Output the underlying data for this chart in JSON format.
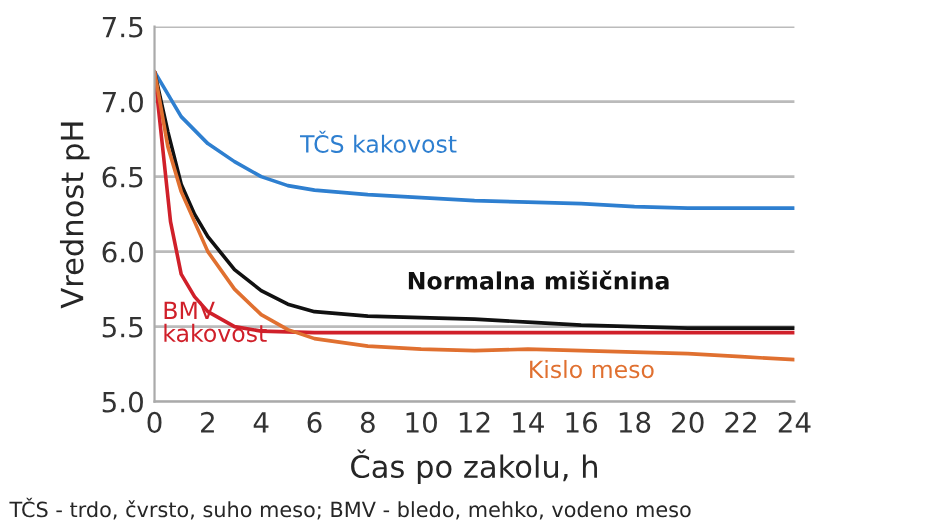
{
  "chart_data": {
    "type": "line",
    "xlabel": "Čas po zakolu, h",
    "ylabel": "Vrednost pH",
    "xlim": [
      0,
      24
    ],
    "xticks": [
      0,
      2,
      4,
      6,
      8,
      10,
      12,
      14,
      16,
      18,
      20,
      22,
      24
    ],
    "ylim": [
      5.0,
      7.5
    ],
    "yticks": [
      {
        "value": 5.0,
        "label": "5.0"
      },
      {
        "value": 5.5,
        "label": "5.5"
      },
      {
        "value": 6.0,
        "label": "6.0"
      },
      {
        "value": 6.5,
        "label": "6.5"
      },
      {
        "value": 7.0,
        "label": "7.0"
      },
      {
        "value": 7.5,
        "label": "7.5"
      }
    ],
    "grid": "y",
    "legend": false,
    "series": [
      {
        "name": "TČS kakovost",
        "color": "#2e7fd0",
        "x": [
          0,
          1,
          2,
          3,
          4,
          5,
          6,
          8,
          10,
          12,
          14,
          16,
          18,
          20,
          24
        ],
        "values": [
          7.2,
          6.9,
          6.72,
          6.6,
          6.5,
          6.44,
          6.41,
          6.38,
          6.36,
          6.34,
          6.33,
          6.32,
          6.3,
          6.29,
          6.29
        ]
      },
      {
        "name": "Normalna mišičnina",
        "color": "#111111",
        "x": [
          0,
          0.5,
          1,
          1.5,
          2,
          3,
          4,
          5,
          6,
          8,
          10,
          12,
          14,
          16,
          18,
          20,
          24
        ],
        "values": [
          7.2,
          6.8,
          6.45,
          6.25,
          6.1,
          5.88,
          5.74,
          5.65,
          5.6,
          5.57,
          5.56,
          5.55,
          5.53,
          5.51,
          5.5,
          5.49,
          5.49
        ]
      },
      {
        "name": "BMV\nkakovost",
        "color": "#d0202a",
        "x": [
          0,
          0.3,
          0.6,
          1,
          1.5,
          2,
          3,
          4,
          6,
          24
        ],
        "values": [
          7.2,
          6.7,
          6.2,
          5.85,
          5.7,
          5.6,
          5.5,
          5.47,
          5.46,
          5.46
        ]
      },
      {
        "name": "Kislo meso",
        "color": "#e07030",
        "x": [
          0,
          0.5,
          1,
          2,
          3,
          4,
          5,
          6,
          8,
          10,
          12,
          14,
          16,
          18,
          20,
          22,
          24
        ],
        "values": [
          7.2,
          6.7,
          6.4,
          6.0,
          5.75,
          5.58,
          5.48,
          5.42,
          5.37,
          5.35,
          5.34,
          5.35,
          5.34,
          5.33,
          5.32,
          5.3,
          5.28
        ]
      }
    ],
    "annotations": [
      "TČS - trdo, čvrsto, suho meso; BMV - bledo, mehko, vodeno meso"
    ]
  }
}
